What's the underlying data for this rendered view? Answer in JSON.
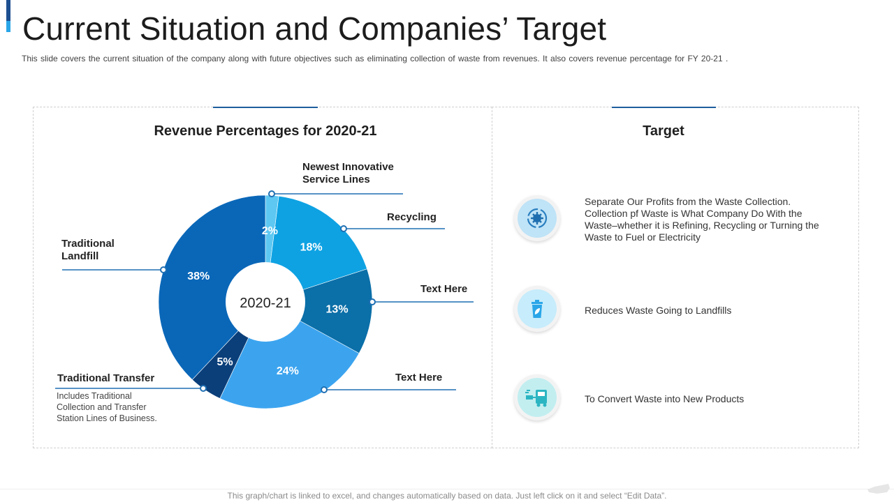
{
  "slide": {
    "title": "Current Situation and Companies’ Target",
    "subtitle": "This slide covers the current situation of the company along with future objectives such as eliminating collection of waste  from revenues.  It also covers revenue  percentage for FY 20-21 .",
    "footer": "This graph/chart is linked to excel,  and changes automatically based on data. Just left click on it and select “Edit Data”."
  },
  "left_panel": {
    "title": "Revenue Percentages for 2020-21"
  },
  "chart_data": {
    "type": "pie",
    "title": "Revenue Percentages for 2020-21",
    "center_label": "2020-21",
    "slices": [
      {
        "label": "Newest Innovative Service Lines",
        "value": 2,
        "display": "2%",
        "color": "#5ec8f2"
      },
      {
        "label": "Recycling",
        "value": 18,
        "display": "18%",
        "color": "#0ea2e3"
      },
      {
        "label": "Text Here",
        "value": 13,
        "display": "13%",
        "color": "#0b6fa8"
      },
      {
        "label": "Text Here",
        "value": 24,
        "display": "24%",
        "color": "#3ca4ef"
      },
      {
        "label": "Traditional Transfer",
        "value": 5,
        "display": "5%",
        "color": "#0b3f7a"
      },
      {
        "label": "Traditional Landfill",
        "value": 38,
        "display": "38%",
        "color": "#0a67b8"
      }
    ]
  },
  "callouts": {
    "newest": [
      "Newest Innovative",
      "Service Lines"
    ],
    "recycling": "Recycling",
    "text_here_1": "Text Here",
    "text_here_2": "Text Here",
    "landfill": [
      "Traditional",
      "Landfill"
    ],
    "transfer": "Traditional Transfer",
    "transfer_note": [
      "Includes Traditional",
      "Collection and Transfer",
      "Station Lines of Business."
    ]
  },
  "right_panel": {
    "title": "Target",
    "items": [
      {
        "icon": "recycle-gear-icon",
        "text": "Separate Our Profits from the Waste Collection. Collection pf Waste is What Company Do With the Waste–whether it is Refining, Recycling or Turning the Waste to Fuel or Electricity"
      },
      {
        "icon": "trash-bin-icon",
        "text": "Reduces Waste Going to Landfills"
      },
      {
        "icon": "garbage-truck-icon",
        "text": "To Convert Waste into New Products"
      }
    ]
  },
  "colors": {
    "accent": "#1d4f91",
    "accent_light": "#2aa6e8",
    "callout_line": "#1e6fb3"
  }
}
